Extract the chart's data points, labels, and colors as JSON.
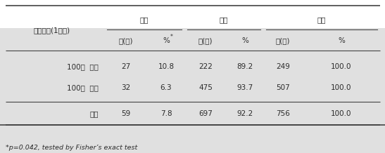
{
  "row_header": "방문일수(1년간)",
  "col_group_labels": [
    "반응",
    "음성",
    "합계"
  ],
  "col_sub_labels": [
    "수(명)",
    "%*",
    "수(명)",
    "%",
    "수(명)",
    "%"
  ],
  "rows": [
    {
      "label": "100일  미만",
      "values": [
        "27",
        "10.8",
        "222",
        "89.2",
        "249",
        "100.0"
      ]
    },
    {
      "label": "100일  이상",
      "values": [
        "32",
        "6.3",
        "475",
        "93.7",
        "507",
        "100.0"
      ]
    },
    {
      "label": "합계",
      "values": [
        "59",
        "7.8",
        "697",
        "92.2",
        "756",
        "100.0"
      ]
    }
  ],
  "footnote": "*p=0.042, tested by Fisher’s exact test",
  "bg_color": "#ffffff",
  "footer_bg_color": "#e0e0e0",
  "text_color": "#2b2b2b",
  "line_color": "#444444",
  "font_size": 7.5,
  "footnote_font_size": 6.8
}
